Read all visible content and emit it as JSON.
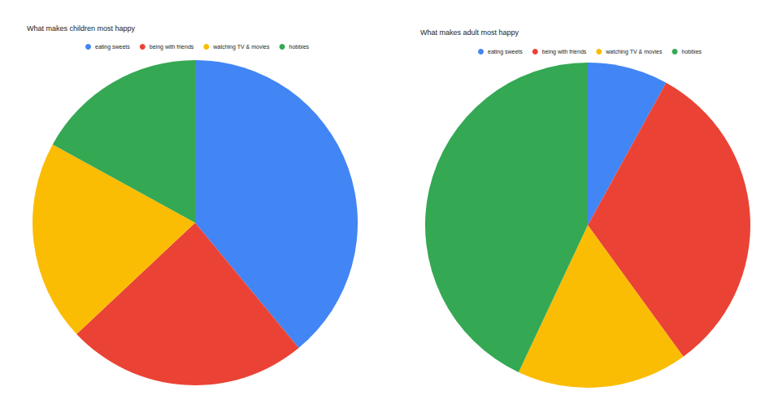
{
  "chart_data": [
    {
      "type": "pie",
      "title": "What makes children most happy",
      "categories": [
        "eating sweets",
        "being with friends",
        "watching TV & movies",
        "hobbies"
      ],
      "values": [
        39,
        24,
        20,
        17
      ],
      "colors": [
        "#4285f4",
        "#ea4335",
        "#fbbc04",
        "#34a853"
      ],
      "legend": "top"
    },
    {
      "type": "pie",
      "title": "What makes adult most happy",
      "categories": [
        "eating sweets",
        "being with friends",
        "watching TV & movies",
        "hobbies"
      ],
      "values": [
        8,
        32,
        17,
        43
      ],
      "colors": [
        "#4285f4",
        "#ea4335",
        "#fbbc04",
        "#34a853"
      ],
      "legend": "top"
    }
  ]
}
